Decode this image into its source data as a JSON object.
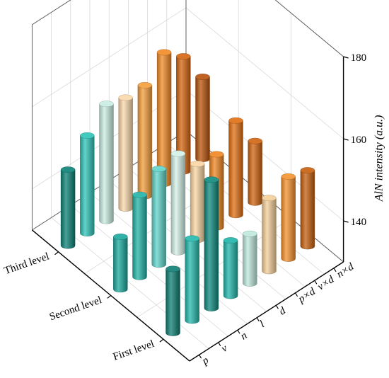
{
  "chart_data": {
    "type": "bar3d",
    "title": "",
    "zlabel": "AlN intensity (a.u.)",
    "zlim": [
      130,
      180
    ],
    "zticks": [
      140,
      160,
      180
    ],
    "x_categories": [
      "First level",
      "Second level",
      "Third level"
    ],
    "y_categories": [
      "p",
      "v",
      "n",
      "l",
      "d",
      "p×d",
      "v×d",
      "n×d"
    ],
    "grid": true,
    "series": [
      {
        "level": "First level",
        "values": [
          145.6,
          150.0,
          161.3,
          143.5,
          142.1,
          147.8,
          150.0,
          148.5
        ]
      },
      {
        "level": "Second level",
        "values": [
          142.8,
          150.0,
          153.3,
          154.0,
          148.5,
          147.8,
          153.0,
          145.0
        ]
      },
      {
        "level": "Third level",
        "values": [
          148.5,
          153.8,
          158.5,
          157.0,
          157.0,
          162.0,
          158.0,
          150.0
        ]
      }
    ],
    "colors": {
      "First level": [
        "#0d7d72",
        "#24b8ac",
        "#0e8a7e",
        "#1fb5a9",
        "#bfe8dc",
        "#f4cf9a",
        "#f4922d",
        "#c65f0d"
      ],
      "Second level": [
        "#1aa89d",
        "#21b3a7",
        "#5fd4c9",
        "#d3f0e6",
        "#f9d5a3",
        "#ef8522",
        "#e06f12",
        "#d0630f"
      ],
      "Third level": [
        "#0b8276",
        "#2ec4b8",
        "#c8ede2",
        "#f9d8ab",
        "#f39e3c",
        "#f08a25",
        "#d4640f",
        "#b8510a"
      ]
    }
  }
}
